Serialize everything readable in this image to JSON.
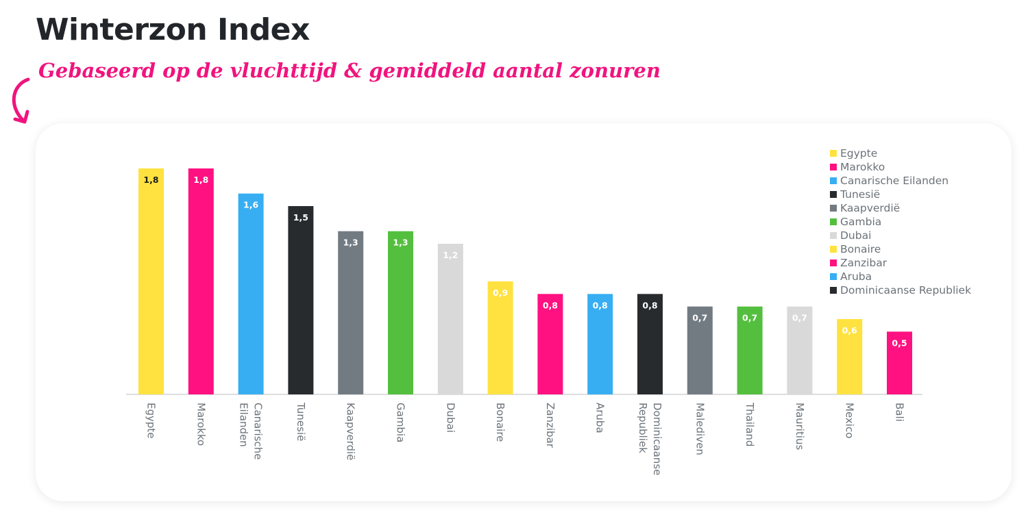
{
  "page": {
    "title": "Winterzon Index",
    "subtitle": "Gebaseerd op de vluchttijd & gemiddeld aantal zonuren"
  },
  "icons": {
    "arrow": "curved-arrow-down-icon"
  },
  "colors": {
    "yellow": "#FFE23F",
    "pink": "#FF1181",
    "blue": "#37AEF2",
    "black": "#282B2E",
    "gray": "#737B82",
    "green": "#54BF3E",
    "lightgray": "#D9D9D9",
    "accent": "#F0147E",
    "title": "#22262A",
    "axis_text": "#6B7278"
  },
  "chart_data": {
    "type": "bar",
    "title": "",
    "xlabel": "",
    "ylabel": "",
    "ylim": [
      0,
      1.8
    ],
    "grid": false,
    "legend_position": "top-right",
    "categories": [
      "Egypte",
      "Marokko",
      "Canarische Eilanden",
      "Tunesië",
      "Kaapverdië",
      "Gambia",
      "Dubai",
      "Bonaire",
      "Zanzibar",
      "Aruba",
      "Dominicaanse Republiek",
      "Malediven",
      "Thailand",
      "Mauritius",
      "Mexico",
      "Bali"
    ],
    "values": [
      1.8,
      1.8,
      1.6,
      1.5,
      1.3,
      1.3,
      1.2,
      0.9,
      0.8,
      0.8,
      0.8,
      0.7,
      0.7,
      0.7,
      0.6,
      0.5
    ],
    "value_labels": [
      "1,8",
      "1,8",
      "1,6",
      "1,5",
      "1,3",
      "1,3",
      "1,2",
      "0,9",
      "0,8",
      "0,8",
      "0,8",
      "0,7",
      "0,7",
      "0,7",
      "0,6",
      "0,5"
    ],
    "bar_colors": [
      "#FFE23F",
      "#FF1181",
      "#37AEF2",
      "#282B2E",
      "#737B82",
      "#54BF3E",
      "#D9D9D9",
      "#FFE23F",
      "#FF1181",
      "#37AEF2",
      "#282B2E",
      "#737B82",
      "#54BF3E",
      "#D9D9D9",
      "#FFE23F",
      "#FF1181"
    ],
    "label_colors": [
      "#1a1a1a",
      "#ffffff",
      "#ffffff",
      "#ffffff",
      "#ffffff",
      "#ffffff",
      "#ffffff",
      "#ffffff",
      "#ffffff",
      "#ffffff",
      "#ffffff",
      "#ffffff",
      "#ffffff",
      "#ffffff",
      "#ffffff",
      "#ffffff"
    ],
    "legend": [
      {
        "name": "Egypte",
        "color": "#FFE23F"
      },
      {
        "name": "Marokko",
        "color": "#FF1181"
      },
      {
        "name": "Canarische Eilanden",
        "color": "#37AEF2"
      },
      {
        "name": "Tunesië",
        "color": "#282B2E"
      },
      {
        "name": "Kaapverdië",
        "color": "#737B82"
      },
      {
        "name": "Gambia",
        "color": "#54BF3E"
      },
      {
        "name": "Dubai",
        "color": "#D9D9D9"
      },
      {
        "name": "Bonaire",
        "color": "#FFE23F"
      },
      {
        "name": "Zanzibar",
        "color": "#FF1181"
      },
      {
        "name": "Aruba",
        "color": "#37AEF2"
      },
      {
        "name": "Dominicaanse Republiek",
        "color": "#282B2E"
      }
    ]
  }
}
